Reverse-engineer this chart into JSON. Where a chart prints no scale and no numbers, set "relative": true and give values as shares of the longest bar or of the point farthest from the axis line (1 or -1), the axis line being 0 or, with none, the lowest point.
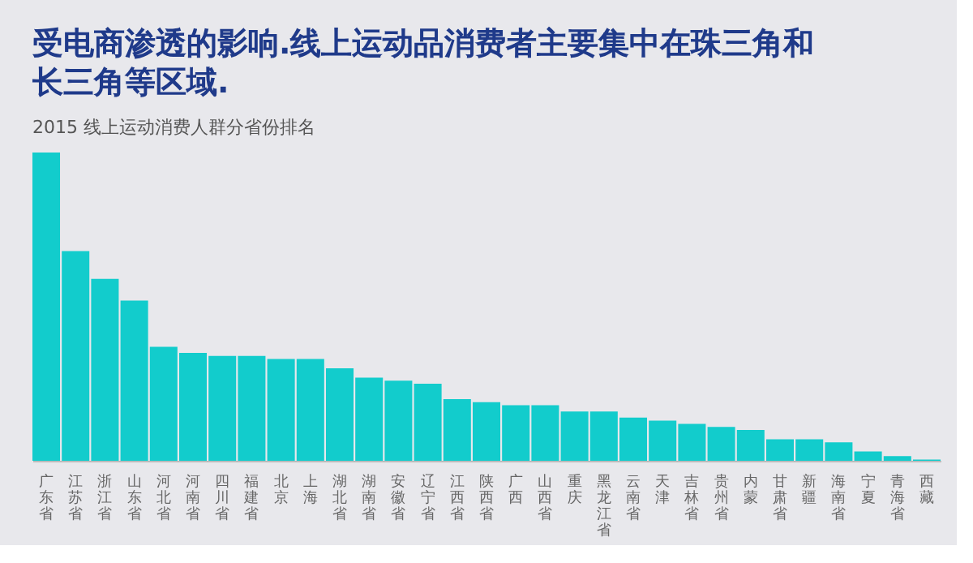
{
  "chart_data": {
    "type": "bar",
    "title": "受电商渗透的影响.线上运动品消费者主要集中在珠三角和长三角等区域.",
    "subtitle": "2015 线上运动消费人群分省份排名",
    "relative": true,
    "color": "#12cccc",
    "grid": false,
    "categories": [
      "广东省",
      "江苏省",
      "浙江省",
      "山东省",
      "河北省",
      "河南省",
      "四川省",
      "福建省",
      "北京",
      "上海",
      "湖北省",
      "湖南省",
      "安徽省",
      "辽宁省",
      "江西省",
      "陕西省",
      "广西",
      "山西省",
      "重庆",
      "黑龙江省",
      "云南省",
      "天津",
      "吉林省",
      "贵州省",
      "内蒙",
      "甘肃省",
      "新疆",
      "海南省",
      "宁夏",
      "青海省",
      "西藏"
    ],
    "values": [
      1,
      0.68,
      0.59,
      0.52,
      0.37,
      0.35,
      0.34,
      0.34,
      0.33,
      0.33,
      0.3,
      0.27,
      0.26,
      0.25,
      0.2,
      0.19,
      0.18,
      0.18,
      0.16,
      0.16,
      0.14,
      0.13,
      0.12,
      0.11,
      0.1,
      0.07,
      0.07,
      0.06,
      0.03,
      0.015,
      0.004
    ]
  }
}
